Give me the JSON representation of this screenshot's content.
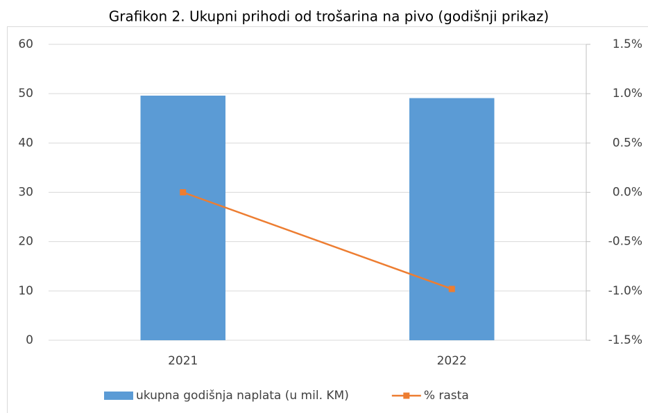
{
  "chart_data": {
    "type": "bar",
    "title": "Grafikon 2. Ukupni prihodi od trošarina na pivo (godišnji prikaz)",
    "categories": [
      "2021",
      "2022"
    ],
    "series": [
      {
        "name": "ukupna godišnja naplata (u mil. KM)",
        "color": "#5b9bd5",
        "values": [
          49.6,
          49.1
        ]
      },
      {
        "name": "% rasta",
        "color": "#ed7d31",
        "values": [
          0.0,
          -0.98
        ],
        "axis": "y2",
        "type": "line"
      }
    ],
    "ylim": [
      0,
      60
    ],
    "yticks": [
      0,
      10,
      20,
      30,
      40,
      50,
      60
    ],
    "y2lim": [
      -1.5,
      1.5
    ],
    "y2ticks": [
      {
        "value": -1.5,
        "label": "-1.5%"
      },
      {
        "value": -1.0,
        "label": "-1.0%"
      },
      {
        "value": -0.5,
        "label": "-0.5%"
      },
      {
        "value": 0,
        "label": "0.0%"
      },
      {
        "value": 0.5,
        "label": "0.5%"
      },
      {
        "value": 1.0,
        "label": "1.0%"
      },
      {
        "value": 1.5,
        "label": "1.5%"
      }
    ],
    "grid": true,
    "legend": "bottom"
  }
}
